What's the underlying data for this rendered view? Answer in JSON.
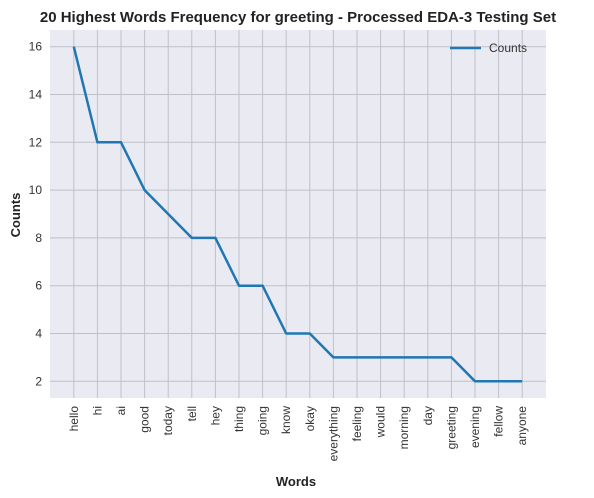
{
  "chart_data": {
    "type": "line",
    "title": "20 Highest Words Frequency for greeting - Processed EDA-3 Testing Set",
    "xlabel": "Words",
    "ylabel": "Counts",
    "categories": [
      "hello",
      "hi",
      "ai",
      "good",
      "today",
      "tell",
      "hey",
      "thing",
      "going",
      "know",
      "okay",
      "everything",
      "feeling",
      "would",
      "morning",
      "day",
      "greeting",
      "evening",
      "fellow",
      "anyone"
    ],
    "series": [
      {
        "name": "Counts",
        "values": [
          16,
          12,
          12,
          10,
          9,
          8,
          8,
          6,
          6,
          4,
          4,
          3,
          3,
          3,
          3,
          3,
          3,
          2,
          2,
          2
        ]
      }
    ],
    "ylim": [
      1.3,
      16.7
    ],
    "yticks": [
      2,
      4,
      6,
      8,
      10,
      12,
      14,
      16
    ],
    "grid": true,
    "legend": "top-right",
    "colors": {
      "line": "#1f77b4",
      "plot_bg": "#eaeaf2",
      "grid": "#c0c0c8"
    }
  }
}
